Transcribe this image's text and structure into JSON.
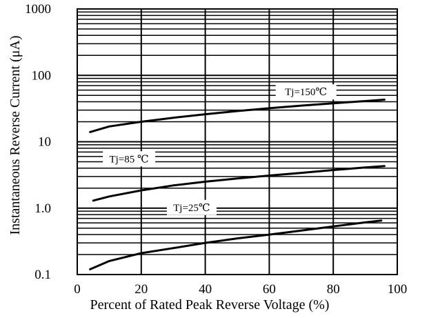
{
  "chart_data": {
    "type": "line",
    "xlabel": "Percent of Rated Peak Reverse Voltage (%)",
    "ylabel": "Instantaneous Reverse Current (μA)",
    "xlim": [
      0,
      100
    ],
    "ylim": [
      0.1,
      1000
    ],
    "yscale": "log",
    "grid": true,
    "x_ticks": [
      "0",
      "20",
      "40",
      "60",
      "80",
      "100"
    ],
    "y_ticks": [
      "0.1",
      "1.0",
      "10",
      "100",
      "1000"
    ],
    "series": [
      {
        "name": "Tj=150℃",
        "x": [
          4,
          10,
          20,
          30,
          40,
          50,
          60,
          70,
          80,
          90,
          96
        ],
        "y": [
          14,
          17,
          20,
          23,
          26,
          29,
          32,
          35,
          38,
          41,
          43
        ]
      },
      {
        "name": "Tj=85 ℃",
        "x": [
          5,
          10,
          20,
          30,
          40,
          50,
          60,
          70,
          80,
          90,
          96
        ],
        "y": [
          1.3,
          1.5,
          1.85,
          2.2,
          2.5,
          2.8,
          3.1,
          3.4,
          3.75,
          4.1,
          4.3
        ]
      },
      {
        "name": "Tj=25℃",
        "x": [
          4,
          10,
          20,
          30,
          40,
          50,
          60,
          70,
          80,
          90,
          95
        ],
        "y": [
          0.12,
          0.16,
          0.21,
          0.25,
          0.3,
          0.35,
          0.4,
          0.46,
          0.53,
          0.61,
          0.65
        ]
      }
    ]
  }
}
